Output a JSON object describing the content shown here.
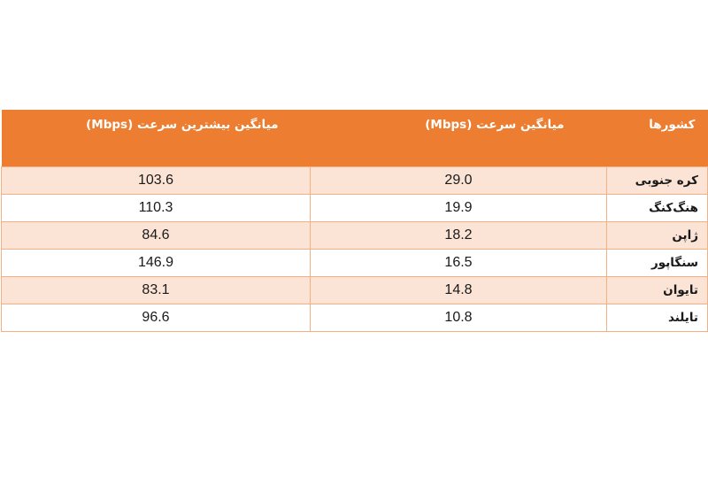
{
  "table": {
    "headers": {
      "max_speed": "میانگین بیشترین سرعت (Mbps)",
      "avg_speed": "میانگین سرعت (Mbps)",
      "country": "کشورها"
    },
    "rows": [
      {
        "country": "کره جنوبی",
        "avg_speed": "29.0",
        "max_speed": "103.6"
      },
      {
        "country": "هنگ‌کنگ",
        "avg_speed": "19.9",
        "max_speed": "110.3"
      },
      {
        "country": "ژاپن",
        "avg_speed": "18.2",
        "max_speed": "84.6"
      },
      {
        "country": "سنگاپور",
        "avg_speed": "16.5",
        "max_speed": "146.9"
      },
      {
        "country": "تایوان",
        "avg_speed": "14.8",
        "max_speed": "83.1"
      },
      {
        "country": "تایلند",
        "avg_speed": "10.8",
        "max_speed": "96.6"
      }
    ]
  },
  "colors": {
    "header_bg": "#ed7d31",
    "header_text": "#ffffff",
    "band_row": "#fbe4d5",
    "border": "#f4b083"
  }
}
